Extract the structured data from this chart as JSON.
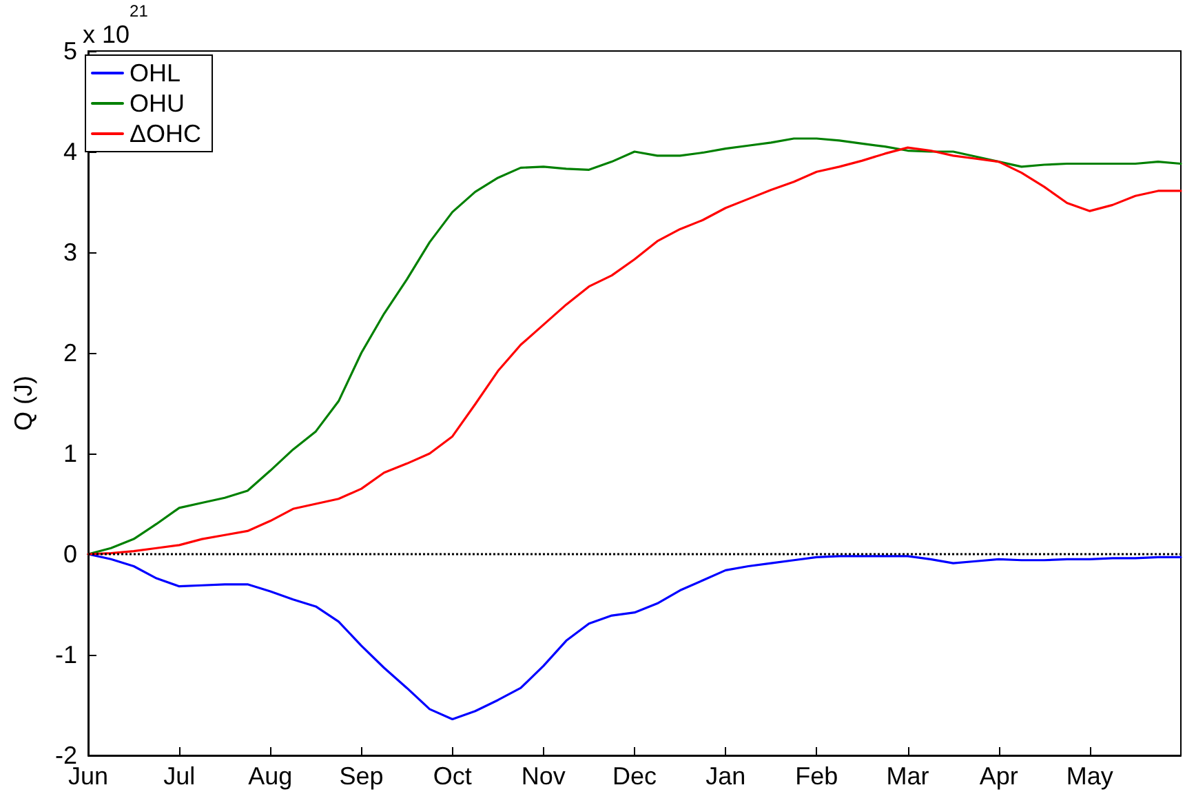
{
  "chart_data": {
    "type": "line",
    "ylabel": "Q (J)",
    "annotations": [
      "x 10$^{21}$"
    ],
    "categories": [
      "Jun",
      null,
      null,
      null,
      "Jul",
      null,
      null,
      null,
      "Aug",
      null,
      null,
      null,
      "Sep",
      null,
      null,
      null,
      "Oct",
      null,
      null,
      null,
      "Nov",
      null,
      null,
      null,
      "Dec",
      null,
      null,
      null,
      "Jan",
      null,
      null,
      null,
      "Feb",
      null,
      null,
      null,
      "Mar",
      null,
      null,
      null,
      "Apr",
      null,
      null,
      null,
      "May",
      null,
      null,
      null,
      null
    ],
    "ylim": [
      -2,
      5
    ],
    "yticks": [
      -2,
      -1,
      0,
      1,
      2,
      3,
      4,
      5
    ],
    "grid": false,
    "legend": "top left",
    "marker": "none",
    "line_style": "solid",
    "ref_lines": [
      {
        "axis": "y",
        "value": 0,
        "color": "#000000",
        "line_style": "dotted"
      }
    ],
    "series": [
      {
        "name": "OHL",
        "color": "#0000ff",
        "values": [
          0,
          -0.05,
          -0.12,
          -0.24,
          -0.32,
          -0.31,
          -0.3,
          -0.3,
          -0.37,
          -0.45,
          -0.52,
          -0.67,
          -0.91,
          -1.13,
          -1.33,
          -1.54,
          -1.64,
          -1.56,
          -1.45,
          -1.33,
          -1.11,
          -0.86,
          -0.69,
          -0.61,
          -0.58,
          -0.49,
          -0.36,
          -0.26,
          -0.16,
          -0.12,
          -0.09,
          -0.06,
          -0.03,
          -0.02,
          -0.02,
          -0.02,
          -0.02,
          -0.05,
          -0.09,
          -0.07,
          -0.05,
          -0.06,
          -0.06,
          -0.05,
          -0.05,
          -0.04,
          -0.04,
          -0.03,
          -0.03
        ]
      },
      {
        "name": "OHU",
        "color": "#008000",
        "values": [
          0,
          0.06,
          0.15,
          0.3,
          0.46,
          0.51,
          0.56,
          0.63,
          0.83,
          1.04,
          1.22,
          1.52,
          2.0,
          2.39,
          2.73,
          3.1,
          3.4,
          3.6,
          3.74,
          3.84,
          3.85,
          3.83,
          3.82,
          3.9,
          4.0,
          3.96,
          3.96,
          3.99,
          4.03,
          4.06,
          4.09,
          4.13,
          4.13,
          4.11,
          4.08,
          4.05,
          4.01,
          4.0,
          4.0,
          3.95,
          3.9,
          3.85,
          3.87,
          3.88,
          3.88,
          3.88,
          3.88,
          3.9,
          3.88
        ]
      },
      {
        "name": "ΔOHC",
        "color": "#ff0000",
        "values": [
          0,
          0.01,
          0.03,
          0.06,
          0.09,
          0.15,
          0.19,
          0.23,
          0.33,
          0.45,
          0.5,
          0.55,
          0.65,
          0.81,
          0.9,
          1.0,
          1.17,
          1.49,
          1.82,
          2.08,
          2.28,
          2.48,
          2.66,
          2.77,
          2.93,
          3.11,
          3.23,
          3.32,
          3.44,
          3.53,
          3.62,
          3.7,
          3.8,
          3.85,
          3.91,
          3.98,
          4.04,
          4.01,
          3.96,
          3.93,
          3.9,
          3.79,
          3.65,
          3.49,
          3.41,
          3.47,
          3.56,
          3.61,
          3.61
        ]
      }
    ]
  }
}
